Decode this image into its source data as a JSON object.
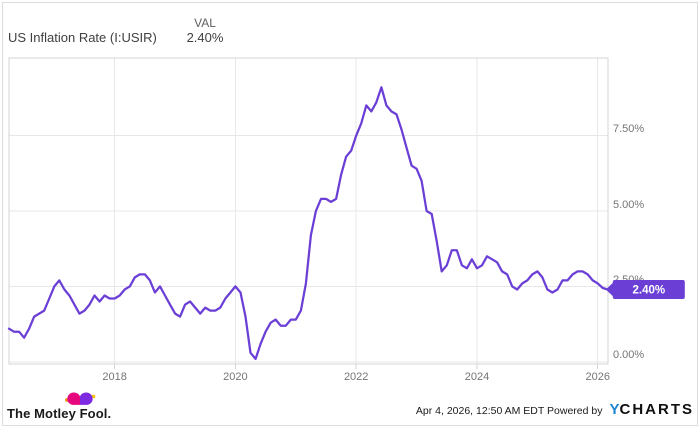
{
  "header": {
    "title": "US Inflation Rate (I:USIR)",
    "val_label": "VAL",
    "val_value": "2.40%"
  },
  "chart_data": {
    "type": "line",
    "title": "US Inflation Rate (I:USIR)",
    "unit": "%",
    "x_start": 2016.25,
    "x_step_months": 1,
    "series": [
      {
        "name": "US Inflation Rate",
        "color": "#6b3fd6",
        "values": [
          1.1,
          1.0,
          1.0,
          0.8,
          1.1,
          1.5,
          1.6,
          1.7,
          2.1,
          2.5,
          2.7,
          2.4,
          2.2,
          1.9,
          1.6,
          1.7,
          1.9,
          2.2,
          2.0,
          2.2,
          2.1,
          2.1,
          2.2,
          2.4,
          2.5,
          2.8,
          2.9,
          2.9,
          2.7,
          2.3,
          2.5,
          2.2,
          1.9,
          1.6,
          1.5,
          1.9,
          2.0,
          1.8,
          1.6,
          1.8,
          1.7,
          1.7,
          1.8,
          2.1,
          2.3,
          2.5,
          2.3,
          1.5,
          0.3,
          0.1,
          0.6,
          1.0,
          1.3,
          1.4,
          1.2,
          1.2,
          1.4,
          1.4,
          1.7,
          2.6,
          4.2,
          5.0,
          5.4,
          5.4,
          5.3,
          5.4,
          6.2,
          6.8,
          7.0,
          7.5,
          7.9,
          8.5,
          8.3,
          8.6,
          9.1,
          8.5,
          8.3,
          8.2,
          7.7,
          7.1,
          6.5,
          6.4,
          6.0,
          5.0,
          4.9,
          4.0,
          3.0,
          3.2,
          3.7,
          3.7,
          3.2,
          3.1,
          3.4,
          3.1,
          3.2,
          3.5,
          3.4,
          3.3,
          3.0,
          2.9,
          2.5,
          2.4,
          2.6,
          2.7,
          2.9,
          3.0,
          2.8,
          2.4,
          2.3,
          2.4,
          2.7,
          2.7,
          2.9,
          3.0,
          3.0,
          2.9,
          2.7,
          2.6,
          2.45,
          2.4
        ]
      }
    ],
    "x_ticks": [
      {
        "value": 2018,
        "label": "2018"
      },
      {
        "value": 2020,
        "label": "2020"
      },
      {
        "value": 2022,
        "label": "2022"
      },
      {
        "value": 2024,
        "label": "2024"
      },
      {
        "value": 2026,
        "label": "2026"
      }
    ],
    "y_ticks": [
      {
        "value": 0.0,
        "label": "0.00%"
      },
      {
        "value": 2.5,
        "label": "2.50%"
      },
      {
        "value": 5.0,
        "label": "5.00%"
      },
      {
        "value": 7.5,
        "label": "7.50%"
      }
    ],
    "xlim": [
      2016.25,
      2026.17
    ],
    "ylim": [
      -0.07,
      10.07
    ],
    "grid": true,
    "legend": "none",
    "end_badge": {
      "text": "2.40%",
      "bg": "#6b3fd6",
      "fg": "#ffffff"
    }
  },
  "footer": {
    "brand": "The Motley Fool.",
    "timestamp": "Apr 4, 2026, 12:50 AM EDT",
    "powered_by": "Powered by",
    "ycharts": {
      "y": "Y",
      "charts": "CHARTS",
      "y_color": "#1a86d0"
    }
  },
  "colors": {
    "line": "#6b3fd6",
    "badge_bg": "#6b3fd6",
    "grid": "#e7e7e7",
    "plot_border": "#d4d4d4",
    "axis_text": "#757575",
    "card_border": "#dcdcdc",
    "brand_pink": "#e5077e",
    "brand_purple": "#7d2be0",
    "brand_orange": "#f7941d",
    "brand_yellow": "#ffc20e"
  }
}
